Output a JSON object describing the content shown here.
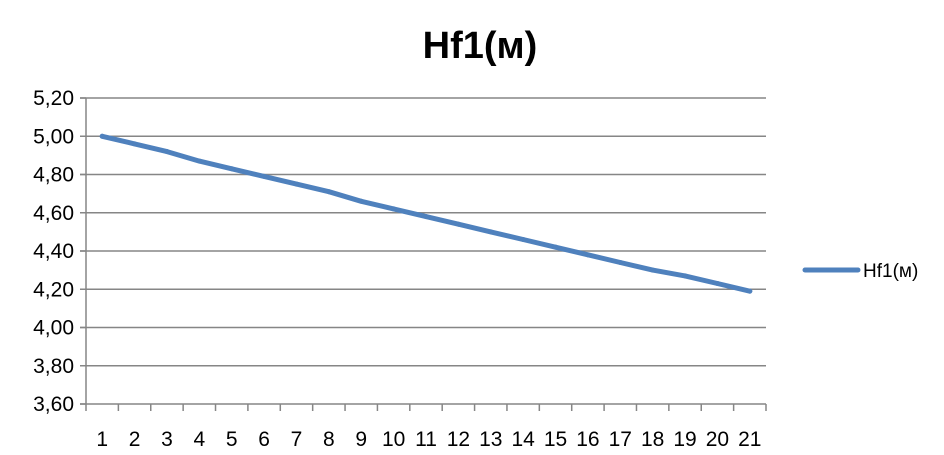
{
  "chart_data": {
    "type": "line",
    "title": "Hf1(м)",
    "xlabel": "",
    "ylabel": "",
    "categories": [
      "1",
      "2",
      "3",
      "4",
      "5",
      "6",
      "7",
      "8",
      "9",
      "10",
      "11",
      "12",
      "13",
      "14",
      "15",
      "16",
      "17",
      "18",
      "19",
      "20",
      "21"
    ],
    "y_tick_labels": [
      "3,60",
      "3,80",
      "4,00",
      "4,20",
      "4,40",
      "4,60",
      "4,80",
      "5,00",
      "5,20"
    ],
    "ylim": [
      3.6,
      5.2
    ],
    "y_step": 0.2,
    "grid": true,
    "legend_position": "right",
    "series": [
      {
        "name": "Hf1(м)",
        "color": "#4f81bd",
        "values": [
          5.0,
          4.96,
          4.92,
          4.87,
          4.83,
          4.79,
          4.75,
          4.71,
          4.66,
          4.62,
          4.58,
          4.54,
          4.5,
          4.46,
          4.42,
          4.38,
          4.34,
          4.3,
          4.27,
          4.23,
          4.19
        ]
      }
    ]
  }
}
